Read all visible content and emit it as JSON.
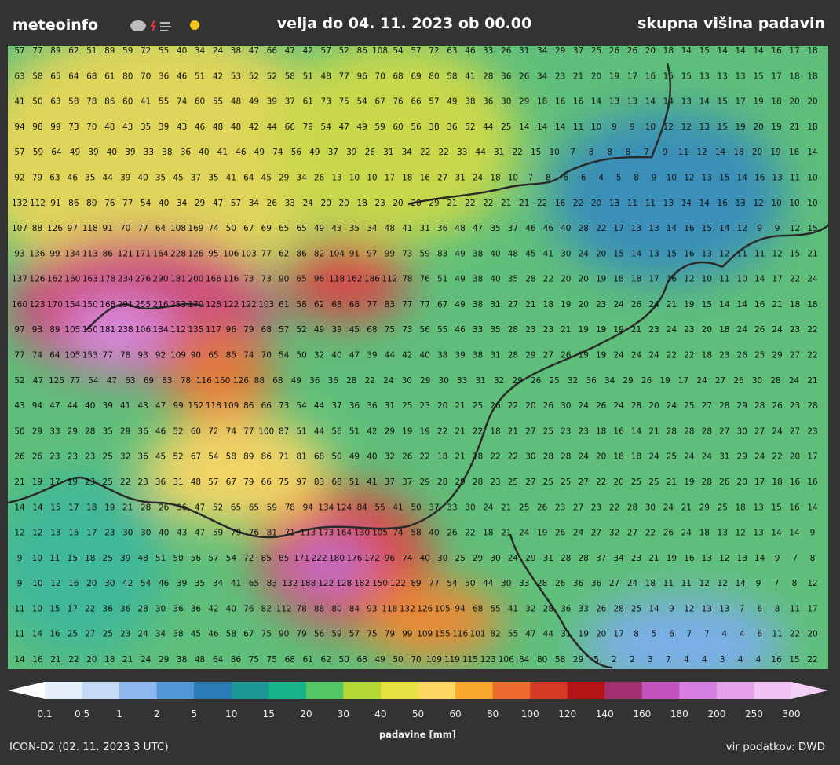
{
  "header": {
    "logo": "meteoinfo",
    "valid": "velja do 04. 11. 2023 ob 00.00",
    "product": "skupna višina padavin"
  },
  "grid": {
    "rows": [
      [
        57,
        77,
        89,
        62,
        51,
        89,
        59,
        72,
        55,
        40,
        34,
        24,
        38,
        47,
        66,
        47,
        42,
        57,
        52,
        86,
        108,
        54,
        57,
        72,
        63,
        46,
        33,
        26,
        31,
        34,
        29,
        37,
        25,
        26,
        26,
        20,
        18,
        14,
        15,
        14,
        14,
        14,
        16,
        17,
        18
      ],
      [
        63,
        58,
        65,
        64,
        68,
        61,
        80,
        70,
        36,
        46,
        51,
        42,
        53,
        52,
        52,
        58,
        51,
        48,
        77,
        96,
        70,
        68,
        69,
        80,
        58,
        41,
        28,
        36,
        26,
        34,
        23,
        21,
        20,
        19,
        17,
        16,
        15,
        15,
        13,
        13,
        13,
        15,
        17,
        18,
        18
      ],
      [
        41,
        50,
        63,
        58,
        78,
        86,
        60,
        41,
        55,
        74,
        60,
        55,
        48,
        49,
        39,
        37,
        61,
        73,
        75,
        54,
        67,
        76,
        66,
        57,
        49,
        38,
        36,
        30,
        29,
        18,
        16,
        16,
        14,
        13,
        13,
        14,
        14,
        13,
        14,
        15,
        17,
        19,
        18,
        20,
        20
      ],
      [
        94,
        98,
        99,
        73,
        70,
        48,
        43,
        35,
        39,
        43,
        46,
        48,
        48,
        42,
        44,
        66,
        79,
        54,
        47,
        49,
        59,
        60,
        56,
        38,
        36,
        52,
        44,
        25,
        14,
        14,
        14,
        11,
        10,
        9,
        9,
        10,
        12,
        12,
        13,
        15,
        19,
        20,
        19,
        21,
        18
      ],
      [
        57,
        59,
        64,
        49,
        39,
        40,
        39,
        33,
        38,
        36,
        40,
        41,
        46,
        49,
        74,
        56,
        49,
        37,
        39,
        26,
        31,
        34,
        22,
        22,
        33,
        44,
        31,
        22,
        15,
        10,
        7,
        8,
        8,
        8,
        7,
        9,
        11,
        12,
        14,
        18,
        20,
        19,
        16,
        14
      ],
      [
        92,
        79,
        63,
        46,
        35,
        44,
        39,
        40,
        35,
        45,
        37,
        35,
        41,
        64,
        45,
        29,
        34,
        26,
        13,
        10,
        10,
        17,
        18,
        16,
        27,
        31,
        24,
        18,
        10,
        7,
        8,
        6,
        6,
        4,
        5,
        8,
        9,
        10,
        12,
        13,
        15,
        14,
        16,
        13,
        11,
        10
      ],
      [
        132,
        112,
        91,
        86,
        80,
        76,
        77,
        54,
        40,
        34,
        29,
        47,
        57,
        34,
        26,
        33,
        24,
        20,
        20,
        18,
        23,
        20,
        20,
        29,
        21,
        22,
        22,
        21,
        21,
        22,
        16,
        22,
        20,
        13,
        11,
        11,
        13,
        14,
        14,
        16,
        13,
        12,
        10,
        10,
        10
      ],
      [
        107,
        88,
        126,
        97,
        118,
        91,
        70,
        77,
        64,
        108,
        169,
        74,
        50,
        67,
        69,
        65,
        65,
        49,
        43,
        35,
        34,
        48,
        41,
        31,
        36,
        48,
        47,
        35,
        37,
        46,
        46,
        40,
        28,
        22,
        17,
        13,
        13,
        14,
        16,
        15,
        14,
        12,
        9,
        9,
        12,
        15
      ],
      [
        93,
        136,
        99,
        134,
        113,
        86,
        121,
        171,
        164,
        228,
        126,
        95,
        106,
        103,
        77,
        62,
        86,
        82,
        104,
        91,
        97,
        99,
        73,
        59,
        83,
        49,
        38,
        40,
        48,
        45,
        41,
        30,
        24,
        20,
        15,
        14,
        13,
        15,
        16,
        13,
        12,
        11,
        11,
        12,
        15,
        21
      ],
      [
        137,
        126,
        162,
        160,
        163,
        178,
        234,
        276,
        290,
        181,
        200,
        166,
        116,
        73,
        73,
        90,
        65,
        96,
        118,
        162,
        186,
        112,
        78,
        76,
        51,
        49,
        38,
        40,
        35,
        28,
        22,
        20,
        20,
        19,
        18,
        18,
        17,
        16,
        12,
        10,
        11,
        10,
        14,
        17,
        22,
        24
      ],
      [
        160,
        123,
        170,
        154,
        150,
        168,
        291,
        255,
        216,
        253,
        170,
        128,
        122,
        122,
        103,
        61,
        58,
        62,
        68,
        68,
        77,
        83,
        77,
        77,
        67,
        49,
        38,
        31,
        27,
        21,
        18,
        19,
        20,
        23,
        24,
        26,
        24,
        21,
        19,
        15,
        14,
        14,
        16,
        21,
        18,
        18
      ],
      [
        97,
        93,
        89,
        105,
        150,
        181,
        238,
        106,
        134,
        112,
        135,
        117,
        96,
        79,
        68,
        57,
        52,
        49,
        39,
        45,
        68,
        75,
        73,
        56,
        55,
        46,
        33,
        35,
        28,
        23,
        23,
        21,
        19,
        19,
        19,
        21,
        23,
        24,
        23,
        20,
        18,
        24,
        26,
        24,
        23,
        22
      ],
      [
        77,
        74,
        64,
        105,
        153,
        77,
        78,
        93,
        92,
        109,
        90,
        65,
        85,
        74,
        70,
        54,
        50,
        32,
        40,
        47,
        39,
        44,
        42,
        40,
        38,
        39,
        38,
        31,
        28,
        29,
        27,
        26,
        19,
        19,
        24,
        24,
        24,
        22,
        22,
        18,
        23,
        26,
        25,
        29,
        27,
        22
      ],
      [
        52,
        47,
        125,
        77,
        54,
        47,
        63,
        69,
        83,
        78,
        116,
        150,
        126,
        88,
        68,
        49,
        36,
        36,
        28,
        22,
        24,
        30,
        29,
        30,
        33,
        31,
        32,
        29,
        26,
        25,
        32,
        36,
        34,
        29,
        26,
        19,
        17,
        24,
        27,
        26,
        30,
        28,
        24,
        21
      ],
      [
        43,
        94,
        47,
        44,
        40,
        39,
        41,
        43,
        47,
        99,
        152,
        118,
        109,
        86,
        66,
        73,
        54,
        44,
        37,
        36,
        36,
        31,
        25,
        23,
        20,
        21,
        25,
        26,
        22,
        20,
        26,
        30,
        24,
        26,
        24,
        28,
        20,
        24,
        25,
        27,
        28,
        29,
        28,
        26,
        23,
        28
      ],
      [
        50,
        29,
        33,
        29,
        28,
        35,
        29,
        36,
        46,
        52,
        60,
        72,
        74,
        77,
        100,
        87,
        51,
        44,
        56,
        51,
        42,
        29,
        19,
        19,
        22,
        21,
        22,
        18,
        21,
        27,
        25,
        23,
        23,
        18,
        16,
        14,
        21,
        28,
        28,
        28,
        27,
        30,
        27,
        24,
        27,
        23
      ],
      [
        26,
        26,
        23,
        23,
        23,
        25,
        32,
        36,
        45,
        52,
        67,
        54,
        58,
        89,
        86,
        71,
        81,
        68,
        50,
        49,
        40,
        32,
        26,
        22,
        18,
        21,
        18,
        22,
        22,
        30,
        28,
        28,
        24,
        20,
        18,
        18,
        24,
        25,
        24,
        24,
        31,
        29,
        24,
        22,
        20,
        17
      ],
      [
        21,
        19,
        17,
        19,
        23,
        25,
        22,
        23,
        36,
        31,
        48,
        57,
        67,
        79,
        66,
        75,
        97,
        83,
        68,
        51,
        41,
        37,
        37,
        29,
        28,
        29,
        28,
        23,
        25,
        27,
        25,
        25,
        27,
        22,
        20,
        25,
        25,
        21,
        19,
        28,
        26,
        20,
        17,
        18,
        16,
        16
      ],
      [
        14,
        14,
        15,
        17,
        18,
        19,
        21,
        28,
        26,
        36,
        47,
        52,
        65,
        65,
        59,
        78,
        94,
        134,
        124,
        84,
        55,
        41,
        50,
        37,
        33,
        30,
        24,
        21,
        25,
        26,
        23,
        27,
        23,
        22,
        28,
        30,
        24,
        21,
        29,
        25,
        18,
        13,
        15,
        16,
        14
      ],
      [
        12,
        12,
        13,
        15,
        17,
        23,
        30,
        30,
        40,
        43,
        47,
        59,
        79,
        76,
        81,
        71,
        113,
        173,
        164,
        130,
        105,
        74,
        58,
        40,
        26,
        22,
        18,
        21,
        24,
        19,
        26,
        24,
        27,
        32,
        27,
        22,
        26,
        24,
        18,
        13,
        12,
        13,
        14,
        14,
        9
      ],
      [
        9,
        10,
        11,
        15,
        18,
        25,
        39,
        48,
        51,
        50,
        56,
        57,
        54,
        72,
        85,
        85,
        171,
        222,
        180,
        176,
        172,
        96,
        74,
        40,
        30,
        25,
        29,
        30,
        24,
        29,
        31,
        28,
        28,
        37,
        34,
        23,
        21,
        19,
        16,
        13,
        12,
        13,
        14,
        9,
        7,
        8
      ],
      [
        9,
        10,
        12,
        16,
        20,
        30,
        42,
        54,
        46,
        39,
        35,
        34,
        41,
        65,
        83,
        132,
        188,
        122,
        128,
        182,
        150,
        122,
        89,
        77,
        54,
        50,
        44,
        30,
        33,
        28,
        26,
        36,
        36,
        27,
        24,
        18,
        11,
        11,
        12,
        12,
        14,
        9,
        7,
        8,
        12
      ],
      [
        11,
        10,
        15,
        17,
        22,
        36,
        36,
        28,
        30,
        36,
        36,
        42,
        40,
        76,
        82,
        112,
        78,
        88,
        80,
        84,
        93,
        118,
        132,
        126,
        105,
        94,
        68,
        55,
        41,
        32,
        28,
        36,
        33,
        26,
        28,
        25,
        14,
        9,
        12,
        13,
        13,
        7,
        6,
        8,
        11,
        17
      ],
      [
        11,
        14,
        16,
        25,
        27,
        25,
        23,
        24,
        34,
        38,
        45,
        46,
        58,
        67,
        75,
        90,
        79,
        56,
        59,
        57,
        75,
        79,
        99,
        109,
        155,
        116,
        101,
        82,
        55,
        47,
        44,
        31,
        19,
        20,
        17,
        8,
        5,
        6,
        7,
        7,
        4,
        4,
        6,
        11,
        22,
        20
      ],
      [
        14,
        16,
        21,
        22,
        20,
        18,
        21,
        24,
        29,
        38,
        48,
        64,
        86,
        75,
        75,
        68,
        61,
        62,
        50,
        68,
        49,
        50,
        70,
        109,
        119,
        115,
        123,
        106,
        84,
        80,
        58,
        29,
        5,
        2,
        2,
        3,
        7,
        4,
        4,
        3,
        4,
        4,
        16,
        15,
        22
      ]
    ]
  },
  "legend": {
    "label": "padavine [mm]",
    "ticks": [
      "0.1",
      "0.5",
      "1",
      "2",
      "5",
      "10",
      "15",
      "20",
      "30",
      "40",
      "50",
      "60",
      "80",
      "100",
      "120",
      "140",
      "160",
      "180",
      "200",
      "250",
      "300"
    ],
    "colors": [
      "#ffffff",
      "#e3eefa",
      "#c4daf5",
      "#8cb8ef",
      "#5197d6",
      "#2b7bb5",
      "#1b9896",
      "#16b288",
      "#55c664",
      "#b4d935",
      "#e6e040",
      "#fdd764",
      "#f9a82c",
      "#ec6a2c",
      "#d43a24",
      "#b51414",
      "#a3306e",
      "#c152be",
      "#d77fe0",
      "#e4a2ea",
      "#f1c2f3",
      "#f3d0f5"
    ]
  },
  "footer": {
    "model": "ICON-D2 (02. 11. 2023 3 UTC)",
    "source": "vir podatkov: DWD"
  }
}
